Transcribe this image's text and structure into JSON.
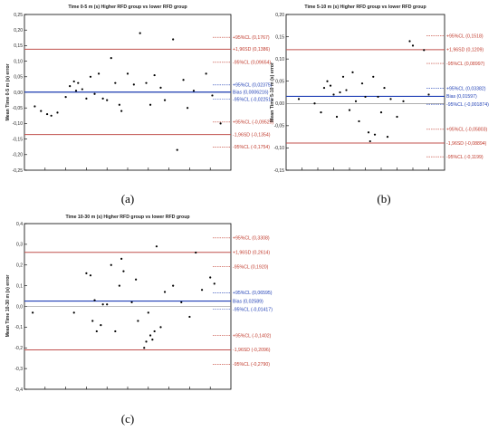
{
  "colors": {
    "sd_line": "#c0504d",
    "bias_line": "#1f3fb5",
    "ref_line": "#7f7f7f",
    "red_label": "#c0392b",
    "blue_label": "#1f3fb5",
    "point": "#000000"
  },
  "chart_data": [
    {
      "id": "a",
      "type": "scatter",
      "title": "Time 0-5 m (s) Higher RFD group vs lower RFD group",
      "ylabel": "Mean Time 0-5 m (s) error",
      "panel_label": "(a)",
      "ylim": [
        -0.25,
        0.25
      ],
      "yticks": [
        "0,25",
        "0,20",
        "0,15",
        "0,10",
        "0,05",
        "0,00",
        "-0,05",
        "-0,10",
        "-0,15",
        "-0,20",
        "-0,25"
      ],
      "tick_values": [
        0.25,
        0.2,
        0.15,
        0.1,
        0.05,
        0,
        -0.05,
        -0.1,
        -0.15,
        -0.2,
        -0.25
      ],
      "bias": 0.0006216,
      "sd_upper": 0.1386,
      "sd_lower": -0.1354,
      "annotations": [
        {
          "value": 0.1767,
          "label": "+95%CL (0,1767)",
          "kind": "ci",
          "color": "red"
        },
        {
          "value": 0.1386,
          "label": "+1,96SD (0,1386)",
          "kind": "sd",
          "color": "red"
        },
        {
          "value": 0.09654,
          "label": "-95%CL (0,09654)",
          "kind": "ci",
          "color": "red"
        },
        {
          "value": 0.02375,
          "label": "+95%CL (0,02375)",
          "kind": "ci",
          "color": "blue"
        },
        {
          "value": 0.0006216,
          "label": "Bias (0,0006216)",
          "kind": "bias",
          "color": "blue"
        },
        {
          "value": -0.02251,
          "label": "-95%CL (-0,02251)",
          "kind": "ci",
          "color": "blue"
        },
        {
          "value": -0.09529,
          "label": "+95%CL (-0,09529)",
          "kind": "ci",
          "color": "red"
        },
        {
          "value": -0.1354,
          "label": "-1,96SD (-0,1354)",
          "kind": "sd",
          "color": "red"
        },
        {
          "value": -0.1754,
          "label": "-95%CL (-0,1754)",
          "kind": "ci",
          "color": "red"
        }
      ],
      "points": [
        [
          0.05,
          -0.045
        ],
        [
          0.08,
          -0.06
        ],
        [
          0.11,
          -0.07
        ],
        [
          0.13,
          -0.075
        ],
        [
          0.16,
          -0.065
        ],
        [
          0.2,
          -0.015
        ],
        [
          0.22,
          0.02
        ],
        [
          0.24,
          0.035
        ],
        [
          0.25,
          0.005
        ],
        [
          0.26,
          0.03
        ],
        [
          0.28,
          0.01
        ],
        [
          0.3,
          -0.02
        ],
        [
          0.32,
          0.05
        ],
        [
          0.34,
          -0.005
        ],
        [
          0.36,
          0.06
        ],
        [
          0.38,
          -0.02
        ],
        [
          0.4,
          -0.025
        ],
        [
          0.42,
          0.11
        ],
        [
          0.44,
          0.03
        ],
        [
          0.46,
          -0.04
        ],
        [
          0.47,
          -0.06
        ],
        [
          0.5,
          0.06
        ],
        [
          0.53,
          0.025
        ],
        [
          0.56,
          0.19
        ],
        [
          0.59,
          0.03
        ],
        [
          0.61,
          -0.04
        ],
        [
          0.63,
          0.055
        ],
        [
          0.66,
          0.015
        ],
        [
          0.68,
          -0.025
        ],
        [
          0.72,
          0.17
        ],
        [
          0.74,
          -0.185
        ],
        [
          0.77,
          0.04
        ],
        [
          0.79,
          -0.05
        ],
        [
          0.82,
          0.005
        ],
        [
          0.88,
          0.06
        ],
        [
          0.91,
          -0.01
        ],
        [
          0.95,
          -0.1
        ]
      ]
    },
    {
      "id": "b",
      "type": "scatter",
      "title": "Time 5-10 m (s) Higher RFD group vs lower RFD group",
      "ylabel": "Mean Time 5-10 m (s) error",
      "panel_label": "(b)",
      "ylim": [
        -0.15,
        0.2
      ],
      "yticks": [
        "0,20",
        "0,15",
        "0,10",
        "0,05",
        "0,00",
        "-0,05",
        "-0,10",
        "-0,15"
      ],
      "tick_values": [
        0.2,
        0.15,
        0.1,
        0.05,
        0,
        -0.05,
        -0.1,
        -0.15
      ],
      "bias": 0.01597,
      "sd_upper": 0.1209,
      "sd_lower": -0.08894,
      "annotations": [
        {
          "value": 0.1518,
          "label": "+95%CL (0,1518)",
          "kind": "ci",
          "color": "red"
        },
        {
          "value": 0.1209,
          "label": "+1,96SD (0,1209)",
          "kind": "sd",
          "color": "red"
        },
        {
          "value": 0.08997,
          "label": "-95%CL (0,08997)",
          "kind": "ci",
          "color": "red"
        },
        {
          "value": 0.03382,
          "label": "+95%CL (0,03382)",
          "kind": "ci",
          "color": "blue"
        },
        {
          "value": 0.01597,
          "label": "Bias (0,01597)",
          "kind": "bias",
          "color": "blue"
        },
        {
          "value": -0.001874,
          "label": "-95%CL (-0,001874)",
          "kind": "ci",
          "color": "blue"
        },
        {
          "value": -0.05803,
          "label": "+95%CL (-0,05803)",
          "kind": "ci",
          "color": "red"
        },
        {
          "value": -0.08894,
          "label": "-1,96SD (-0,08894)",
          "kind": "sd",
          "color": "red"
        },
        {
          "value": -0.1199,
          "label": "-95%CL (-0,1199)",
          "kind": "ci",
          "color": "red"
        }
      ],
      "points": [
        [
          0.08,
          0.01
        ],
        [
          0.18,
          0.0
        ],
        [
          0.22,
          -0.02
        ],
        [
          0.24,
          0.035
        ],
        [
          0.26,
          0.05
        ],
        [
          0.28,
          0.04
        ],
        [
          0.3,
          0.02
        ],
        [
          0.32,
          -0.03
        ],
        [
          0.34,
          0.025
        ],
        [
          0.36,
          0.06
        ],
        [
          0.38,
          0.03
        ],
        [
          0.4,
          -0.015
        ],
        [
          0.42,
          0.07
        ],
        [
          0.44,
          0.005
        ],
        [
          0.46,
          -0.04
        ],
        [
          0.48,
          0.045
        ],
        [
          0.5,
          0.015
        ],
        [
          0.52,
          -0.065
        ],
        [
          0.53,
          -0.085
        ],
        [
          0.55,
          0.06
        ],
        [
          0.56,
          -0.07
        ],
        [
          0.58,
          0.015
        ],
        [
          0.6,
          -0.02
        ],
        [
          0.62,
          0.035
        ],
        [
          0.64,
          -0.075
        ],
        [
          0.66,
          0.01
        ],
        [
          0.7,
          -0.03
        ],
        [
          0.74,
          0.005
        ],
        [
          0.78,
          0.14
        ],
        [
          0.8,
          0.13
        ],
        [
          0.87,
          0.12
        ],
        [
          0.9,
          0.02
        ]
      ]
    },
    {
      "id": "c",
      "type": "scatter",
      "title": "Time 10-30 m (s) Higher RFD group vs lower RFD group",
      "ylabel": "Mean Time 10-30 m (s) error",
      "panel_label": "(c)",
      "ylim": [
        -0.4,
        0.4
      ],
      "yticks": [
        "0,4",
        "0,3",
        "0,2",
        "0,1",
        "0,0",
        "-0,1",
        "-0,2",
        "-0,3",
        "-0,4"
      ],
      "tick_values": [
        0.4,
        0.3,
        0.2,
        0.1,
        0,
        -0.1,
        -0.2,
        -0.3,
        -0.4
      ],
      "bias": 0.02589,
      "sd_upper": 0.2614,
      "sd_lower": -0.2096,
      "annotations": [
        {
          "value": 0.3308,
          "label": "+95%CL (0,3308)",
          "kind": "ci",
          "color": "red"
        },
        {
          "value": 0.2614,
          "label": "+1,96SD (0,2614)",
          "kind": "sd",
          "color": "red"
        },
        {
          "value": 0.192,
          "label": "-95%CL (0,1920)",
          "kind": "ci",
          "color": "red"
        },
        {
          "value": 0.06595,
          "label": "+95%CL (0,06595)",
          "kind": "ci",
          "color": "blue"
        },
        {
          "value": 0.02589,
          "label": "Bias (0,02589)",
          "kind": "bias",
          "color": "blue"
        },
        {
          "value": -0.01417,
          "label": "-95%CL (-0,01417)",
          "kind": "ci",
          "color": "blue"
        },
        {
          "value": -0.1402,
          "label": "+95%CL (-0,1402)",
          "kind": "ci",
          "color": "red"
        },
        {
          "value": -0.2096,
          "label": "-1,96SD (-0,2096)",
          "kind": "sd",
          "color": "red"
        },
        {
          "value": -0.279,
          "label": "-95%CL (-0,2790)",
          "kind": "ci",
          "color": "red"
        }
      ],
      "points": [
        [
          0.04,
          -0.03
        ],
        [
          0.24,
          -0.03
        ],
        [
          0.3,
          0.16
        ],
        [
          0.32,
          0.15
        ],
        [
          0.33,
          -0.07
        ],
        [
          0.34,
          0.03
        ],
        [
          0.35,
          -0.12
        ],
        [
          0.37,
          -0.09
        ],
        [
          0.38,
          0.01
        ],
        [
          0.4,
          0.01
        ],
        [
          0.42,
          0.2
        ],
        [
          0.44,
          -0.12
        ],
        [
          0.46,
          0.1
        ],
        [
          0.47,
          0.23
        ],
        [
          0.48,
          0.17
        ],
        [
          0.52,
          0.02
        ],
        [
          0.54,
          0.13
        ],
        [
          0.55,
          -0.07
        ],
        [
          0.58,
          -0.2
        ],
        [
          0.59,
          -0.17
        ],
        [
          0.6,
          -0.03
        ],
        [
          0.61,
          -0.14
        ],
        [
          0.62,
          -0.16
        ],
        [
          0.63,
          -0.12
        ],
        [
          0.64,
          0.29
        ],
        [
          0.66,
          -0.1
        ],
        [
          0.68,
          0.07
        ],
        [
          0.72,
          0.1
        ],
        [
          0.76,
          0.02
        ],
        [
          0.8,
          -0.05
        ],
        [
          0.83,
          0.26
        ],
        [
          0.86,
          0.08
        ],
        [
          0.9,
          0.14
        ],
        [
          0.92,
          0.11
        ]
      ]
    }
  ]
}
